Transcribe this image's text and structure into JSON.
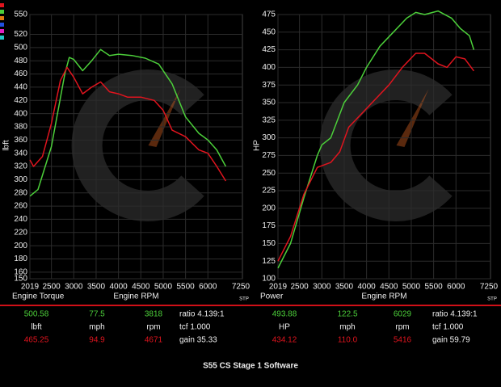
{
  "chart_data": [
    {
      "type": "line",
      "name": "Engine Torque",
      "x_label": "Engine RPM",
      "y_label": "lbft",
      "x_end_label": "7250",
      "units": "STP",
      "xlim": [
        2019,
        6772
      ],
      "xticks": [
        2019,
        2500,
        3000,
        3500,
        4000,
        4500,
        5000,
        5500,
        6000
      ],
      "ylim": [
        150,
        550
      ],
      "yticks": [
        150,
        160,
        180,
        200,
        220,
        240,
        260,
        280,
        300,
        320,
        340,
        360,
        380,
        400,
        420,
        440,
        460,
        480,
        500,
        520,
        550
      ],
      "grid": true,
      "series": [
        {
          "color": "#4ccf3a",
          "x": [
            2019,
            2200,
            2500,
            2800,
            2900,
            3000,
            3200,
            3400,
            3600,
            3800,
            4000,
            4300,
            4600,
            4900,
            5200,
            5500,
            5800,
            6000,
            6200,
            6400
          ],
          "values": [
            275,
            285,
            350,
            460,
            485,
            482,
            465,
            480,
            497,
            488,
            490,
            488,
            484,
            475,
            445,
            395,
            370,
            360,
            345,
            320
          ]
        },
        {
          "color": "#e0141e",
          "x": [
            2019,
            2100,
            2300,
            2500,
            2700,
            2850,
            3000,
            3200,
            3400,
            3600,
            3800,
            4000,
            4200,
            4500,
            4800,
            5000,
            5200,
            5500,
            5800,
            6000,
            6200,
            6400
          ],
          "values": [
            330,
            320,
            335,
            385,
            450,
            470,
            455,
            430,
            440,
            448,
            433,
            430,
            425,
            425,
            420,
            405,
            375,
            365,
            345,
            340,
            320,
            298
          ]
        }
      ]
    },
    {
      "type": "line",
      "name": "Power",
      "x_label": "Engine RPM",
      "y_label": "HP",
      "x_end_label": "7250",
      "units": "STP",
      "xlim": [
        2019,
        6772
      ],
      "xticks": [
        2019,
        2500,
        3000,
        3500,
        4000,
        4500,
        5000,
        5500,
        6000
      ],
      "ylim": [
        100,
        475
      ],
      "yticks": [
        100,
        125,
        150,
        175,
        200,
        225,
        250,
        275,
        300,
        325,
        350,
        375,
        400,
        425,
        450,
        475
      ],
      "grid": true,
      "series": [
        {
          "color": "#4ccf3a",
          "x": [
            2019,
            2300,
            2600,
            2900,
            3000,
            3200,
            3500,
            3800,
            4000,
            4300,
            4600,
            4900,
            5100,
            5300,
            5600,
            5900,
            6100,
            6300,
            6400
          ],
          "values": [
            115,
            150,
            215,
            275,
            290,
            300,
            350,
            375,
            400,
            430,
            450,
            470,
            478,
            475,
            480,
            470,
            455,
            445,
            425
          ]
        },
        {
          "color": "#e0141e",
          "x": [
            2019,
            2300,
            2600,
            2900,
            3200,
            3400,
            3600,
            3900,
            4200,
            4500,
            4800,
            5100,
            5300,
            5600,
            5800,
            6000,
            6200,
            6400
          ],
          "values": [
            125,
            160,
            220,
            258,
            265,
            280,
            315,
            335,
            355,
            375,
            400,
            420,
            420,
            405,
            400,
            415,
            412,
            395
          ]
        }
      ]
    }
  ],
  "stats": [
    {
      "rows": [
        [
          "500.58",
          "77.5",
          "3818",
          "ratio 4.139:1"
        ],
        [
          "lbft",
          "mph",
          "rpm",
          "tcf 1.000"
        ],
        [
          "465.25",
          "94.9",
          "4671",
          "gain 35.33"
        ]
      ]
    },
    {
      "rows": [
        [
          "493.88",
          "122.5",
          "6029",
          "ratio 4.139:1"
        ],
        [
          "HP",
          "mph",
          "rpm",
          "tcf 1.000"
        ],
        [
          "434.12",
          "110.0",
          "5416",
          "gain 59.79"
        ]
      ]
    }
  ],
  "title": "S55 CS Stage 1 Software"
}
